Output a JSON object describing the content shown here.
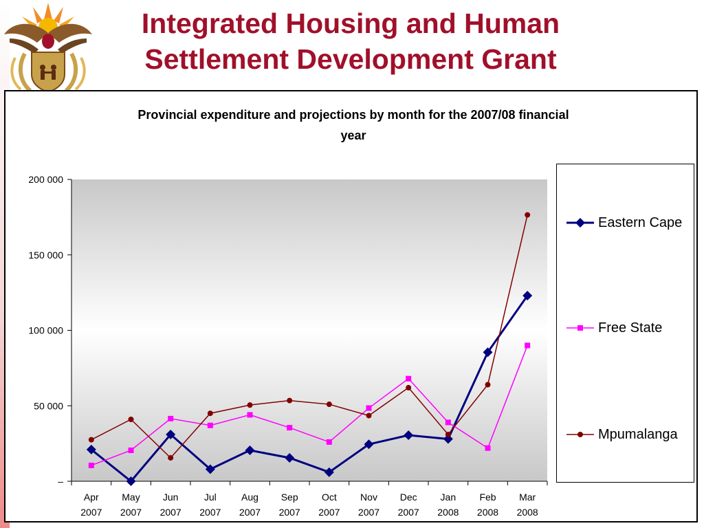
{
  "slide": {
    "title_line1": "Integrated Housing and Human",
    "title_line2": "Settlement Development Grant"
  },
  "chart_data": {
    "type": "line",
    "title": "Provincial expenditure and projections by month for the 2007/08 financial year",
    "title_line1": "Provincial expenditure and projections by month for the 2007/08 financial",
    "title_line2": "year",
    "xlabel": "",
    "ylabel": "",
    "ylim": [
      0,
      200000
    ],
    "yticks": [
      0,
      50000,
      100000,
      150000,
      200000
    ],
    "ytick_labels": [
      "–",
      "50 000",
      "100 000",
      "150 000",
      "200 000"
    ],
    "categories": [
      {
        "month": "Apr",
        "year": "2007"
      },
      {
        "month": "May",
        "year": "2007"
      },
      {
        "month": "Jun",
        "year": "2007"
      },
      {
        "month": "Jul",
        "year": "2007"
      },
      {
        "month": "Aug",
        "year": "2007"
      },
      {
        "month": "Sep",
        "year": "2007"
      },
      {
        "month": "Oct",
        "year": "2007"
      },
      {
        "month": "Nov",
        "year": "2007"
      },
      {
        "month": "Dec",
        "year": "2007"
      },
      {
        "month": "Jan",
        "year": "2008"
      },
      {
        "month": "Feb",
        "year": "2008"
      },
      {
        "month": "Mar",
        "year": "2008"
      }
    ],
    "grid": false,
    "legend_position": "right",
    "series": [
      {
        "name": "Eastern Cape",
        "color": "#000080",
        "marker": "diamond",
        "values": [
          21000,
          0,
          31000,
          8000,
          20500,
          15500,
          6000,
          24500,
          30500,
          28000,
          85500,
          123000
        ]
      },
      {
        "name": "Free State",
        "color": "#ff00ff",
        "marker": "square",
        "values": [
          10500,
          20500,
          41500,
          37000,
          44000,
          35500,
          26000,
          48500,
          68000,
          39000,
          22000,
          90000
        ]
      },
      {
        "name": "Mpumalanga",
        "color": "#800000",
        "marker": "circle",
        "values": [
          27500,
          41000,
          15500,
          45000,
          50500,
          53500,
          51000,
          43500,
          62000,
          31000,
          64000,
          176500
        ]
      }
    ]
  }
}
